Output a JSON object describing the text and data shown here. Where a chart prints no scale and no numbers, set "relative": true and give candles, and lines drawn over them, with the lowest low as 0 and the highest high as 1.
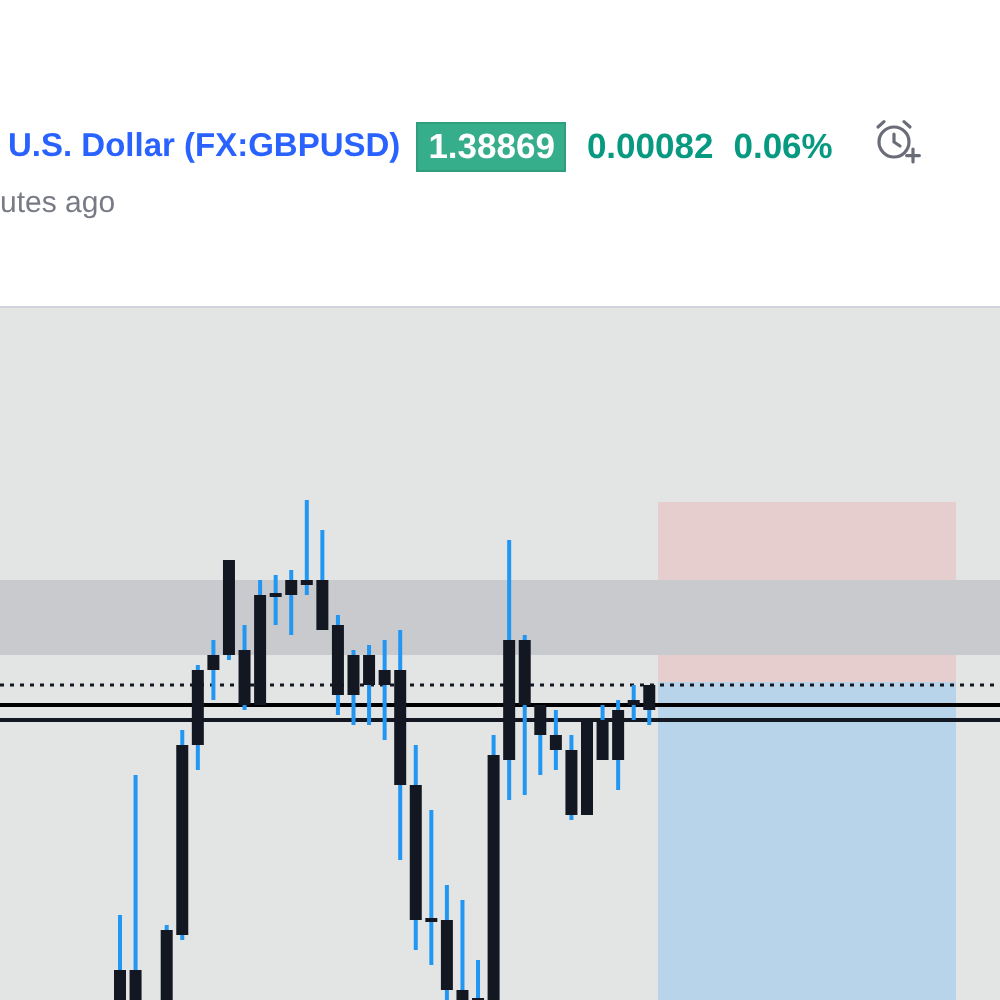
{
  "chart_data": {
    "type": "candlestick",
    "title": "U.S. Dollar (FX:GBPUSD)",
    "subtitle": "utes ago",
    "annotations": [
      "1.38869",
      "0.00082",
      "0.06%"
    ],
    "relative": true,
    "color": "#131722",
    "categories": [
      null,
      null,
      null,
      null,
      null,
      null,
      null,
      null,
      null,
      null,
      null,
      null,
      null,
      null,
      null,
      null,
      null,
      null,
      null,
      null,
      null,
      null,
      null,
      null,
      null,
      null,
      null,
      null,
      null,
      null,
      null,
      null,
      null,
      null,
      null
    ],
    "ohlc": [
      [
        0,
        0.17,
        0,
        0.06
      ],
      [
        0,
        0.45,
        0,
        0.06
      ],
      null,
      [
        0,
        0.15,
        0,
        0.14
      ],
      [
        0.13,
        0.54,
        0.12,
        0.51
      ],
      [
        0.51,
        0.67,
        0.46,
        0.66
      ],
      [
        0.66,
        0.72,
        0.6,
        0.69
      ],
      [
        0.69,
        0.88,
        0.68,
        0.88
      ],
      [
        0.59,
        0.75,
        0.58,
        0.7
      ],
      [
        0.59,
        0.84,
        0.59,
        0.81
      ],
      [
        0.81,
        0.85,
        0.75,
        0.81
      ],
      [
        0.81,
        0.86,
        0.73,
        0.84
      ],
      [
        0.83,
        1,
        0.81,
        0.84
      ],
      [
        0.74,
        0.94,
        0.74,
        0.84
      ],
      [
        0.61,
        0.77,
        0.57,
        0.75
      ],
      [
        0.61,
        0.7,
        0.55,
        0.69
      ],
      [
        0.63,
        0.71,
        0.55,
        0.69
      ],
      [
        0.63,
        0.72,
        0.52,
        0.66
      ],
      [
        0.43,
        0.74,
        0.28,
        0.66
      ],
      [
        0.16,
        0.51,
        0.1,
        0.43
      ],
      [
        0.16,
        0.38,
        0.07,
        0.16
      ],
      [
        0.02,
        0.23,
        0,
        0.16
      ],
      [
        0,
        0.2,
        0,
        0.02
      ],
      [
        0,
        0.08,
        0,
        0
      ],
      [
        0,
        0.53,
        0,
        0.49
      ],
      [
        0.48,
        0.92,
        0.4,
        0.72
      ],
      [
        0.59,
        0.73,
        0.41,
        0.72
      ],
      [
        0.53,
        0.59,
        0.45,
        0.59
      ],
      [
        0.5,
        0.58,
        0.46,
        0.53
      ],
      [
        0.37,
        0.53,
        0.36,
        0.5
      ],
      [
        0.37,
        0.56,
        0.37,
        0.56
      ],
      [
        0.48,
        0.59,
        0.48,
        0.56
      ],
      [
        0.48,
        0.6,
        0.42,
        0.58
      ],
      [
        0.59,
        0.63,
        0.56,
        0.6
      ],
      [
        0.58,
        0.63,
        0.55,
        0.63
      ]
    ],
    "ref_lines": [
      {
        "axis": "y",
        "value": 0.63,
        "line_style": "dotted",
        "color": "#131722"
      },
      {
        "axis": "y",
        "value": 0.59,
        "color": "#000000"
      },
      {
        "axis": "y",
        "value": 0.56,
        "color": "#131722"
      }
    ],
    "bands": [
      {
        "axis": "y",
        "from": 0.69,
        "to": 0.84,
        "color": "#c9cacd"
      }
    ]
  }
}
